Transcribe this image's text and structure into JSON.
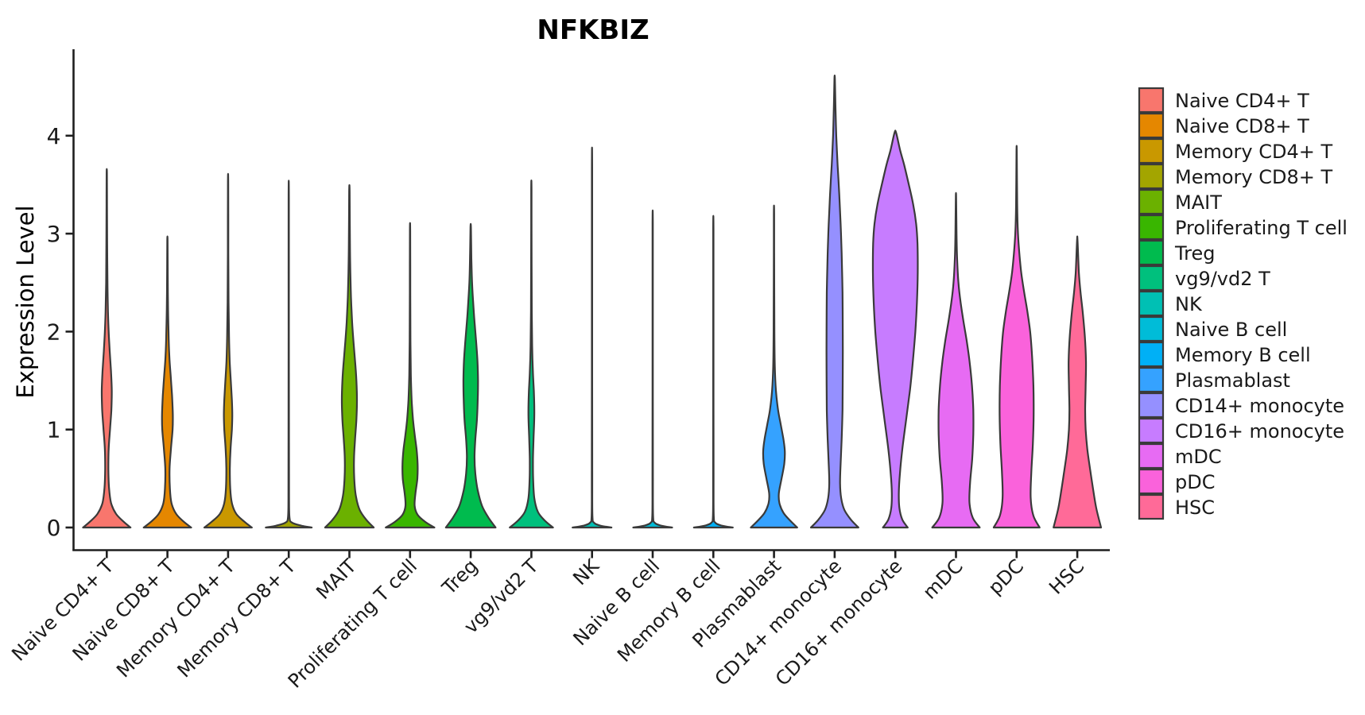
{
  "title": "NFKBIZ",
  "ylabel": "Expression Level",
  "chart_data": {
    "type": "violin",
    "title": "NFKBIZ",
    "xlabel": "",
    "ylabel": "Expression Level",
    "yticks": [
      0,
      1,
      2,
      3,
      4
    ],
    "ylim": [
      0,
      4.88
    ],
    "grid": false,
    "legend_position": "right",
    "stroke_color": "#3A3A3A",
    "axis_color": "#1f1f1f",
    "categories": [
      {
        "label": "Naive CD4+ T",
        "color": "#F8766D",
        "max_expression": 3.62,
        "profile": [
          [
            0,
            0.88
          ],
          [
            0.06,
            0.62
          ],
          [
            0.14,
            0.34
          ],
          [
            0.25,
            0.16
          ],
          [
            0.4,
            0.085
          ],
          [
            0.6,
            0.06
          ],
          [
            0.8,
            0.07
          ],
          [
            1.0,
            0.12
          ],
          [
            1.2,
            0.17
          ],
          [
            1.4,
            0.185
          ],
          [
            1.6,
            0.155
          ],
          [
            1.8,
            0.11
          ],
          [
            2.0,
            0.07
          ],
          [
            2.2,
            0.045
          ],
          [
            2.5,
            0.025
          ],
          [
            2.9,
            0.015
          ],
          [
            3.3,
            0.01
          ],
          [
            3.62,
            0.006
          ]
        ]
      },
      {
        "label": "Naive CD8+ T",
        "color": "#E58700",
        "max_expression": 2.93,
        "profile": [
          [
            0,
            0.88
          ],
          [
            0.06,
            0.6
          ],
          [
            0.14,
            0.32
          ],
          [
            0.25,
            0.15
          ],
          [
            0.4,
            0.09
          ],
          [
            0.6,
            0.08
          ],
          [
            0.8,
            0.13
          ],
          [
            1.0,
            0.19
          ],
          [
            1.15,
            0.2
          ],
          [
            1.35,
            0.17
          ],
          [
            1.55,
            0.12
          ],
          [
            1.75,
            0.07
          ],
          [
            2.0,
            0.04
          ],
          [
            2.3,
            0.02
          ],
          [
            2.6,
            0.012
          ],
          [
            2.93,
            0.006
          ]
        ]
      },
      {
        "label": "Memory CD4+ T",
        "color": "#C99800",
        "max_expression": 3.52,
        "profile": [
          [
            0,
            0.88
          ],
          [
            0.06,
            0.6
          ],
          [
            0.14,
            0.3
          ],
          [
            0.25,
            0.14
          ],
          [
            0.4,
            0.08
          ],
          [
            0.6,
            0.065
          ],
          [
            0.8,
            0.09
          ],
          [
            1.0,
            0.14
          ],
          [
            1.15,
            0.155
          ],
          [
            1.3,
            0.14
          ],
          [
            1.5,
            0.1
          ],
          [
            1.7,
            0.06
          ],
          [
            1.95,
            0.035
          ],
          [
            2.3,
            0.018
          ],
          [
            2.8,
            0.01
          ],
          [
            3.52,
            0.006
          ]
        ]
      },
      {
        "label": "Memory CD8+ T",
        "color": "#A3A500",
        "max_expression": 3.37,
        "profile": [
          [
            0,
            0.85
          ],
          [
            0.02,
            0.45
          ],
          [
            0.05,
            0.12
          ],
          [
            0.1,
            0.03
          ],
          [
            0.3,
            0.012
          ],
          [
            1.0,
            0.008
          ],
          [
            2.0,
            0.007
          ],
          [
            3.37,
            0.006
          ]
        ]
      },
      {
        "label": "MAIT",
        "color": "#6BB100",
        "max_expression": 3.43,
        "profile": [
          [
            0,
            0.9
          ],
          [
            0.08,
            0.62
          ],
          [
            0.18,
            0.38
          ],
          [
            0.32,
            0.24
          ],
          [
            0.5,
            0.18
          ],
          [
            0.7,
            0.17
          ],
          [
            0.9,
            0.21
          ],
          [
            1.1,
            0.26
          ],
          [
            1.3,
            0.28
          ],
          [
            1.5,
            0.26
          ],
          [
            1.7,
            0.21
          ],
          [
            1.9,
            0.15
          ],
          [
            2.1,
            0.1
          ],
          [
            2.35,
            0.06
          ],
          [
            2.6,
            0.035
          ],
          [
            2.9,
            0.02
          ],
          [
            3.43,
            0.008
          ]
        ]
      },
      {
        "label": "Proliferating T cell",
        "color": "#39B600",
        "max_expression": 3.03,
        "profile": [
          [
            0,
            0.9
          ],
          [
            0.06,
            0.55
          ],
          [
            0.13,
            0.28
          ],
          [
            0.22,
            0.17
          ],
          [
            0.35,
            0.2
          ],
          [
            0.5,
            0.27
          ],
          [
            0.65,
            0.28
          ],
          [
            0.8,
            0.24
          ],
          [
            0.95,
            0.17
          ],
          [
            1.1,
            0.11
          ],
          [
            1.3,
            0.06
          ],
          [
            1.55,
            0.03
          ],
          [
            1.9,
            0.015
          ],
          [
            2.4,
            0.009
          ],
          [
            3.03,
            0.006
          ]
        ]
      },
      {
        "label": "Treg",
        "color": "#00BB4E",
        "max_expression": 3.06,
        "profile": [
          [
            0,
            0.92
          ],
          [
            0.1,
            0.66
          ],
          [
            0.22,
            0.42
          ],
          [
            0.38,
            0.26
          ],
          [
            0.55,
            0.17
          ],
          [
            0.72,
            0.14
          ],
          [
            0.9,
            0.17
          ],
          [
            1.1,
            0.23
          ],
          [
            1.3,
            0.26
          ],
          [
            1.5,
            0.27
          ],
          [
            1.7,
            0.25
          ],
          [
            1.9,
            0.2
          ],
          [
            2.1,
            0.14
          ],
          [
            2.3,
            0.09
          ],
          [
            2.5,
            0.05
          ],
          [
            2.75,
            0.025
          ],
          [
            3.06,
            0.008
          ]
        ]
      },
      {
        "label": "vg9/vd2 T",
        "color": "#00C07D",
        "max_expression": 3.45,
        "profile": [
          [
            0,
            0.8
          ],
          [
            0.07,
            0.5
          ],
          [
            0.16,
            0.24
          ],
          [
            0.3,
            0.11
          ],
          [
            0.5,
            0.065
          ],
          [
            0.7,
            0.06
          ],
          [
            0.9,
            0.08
          ],
          [
            1.05,
            0.1
          ],
          [
            1.2,
            0.11
          ],
          [
            1.4,
            0.09
          ],
          [
            1.6,
            0.055
          ],
          [
            1.85,
            0.03
          ],
          [
            2.2,
            0.015
          ],
          [
            2.7,
            0.008
          ],
          [
            3.45,
            0.005
          ]
        ]
      },
      {
        "label": "NK",
        "color": "#00C0B4",
        "max_expression": 3.67,
        "profile": [
          [
            0,
            0.72
          ],
          [
            0.02,
            0.3
          ],
          [
            0.05,
            0.07
          ],
          [
            0.12,
            0.015
          ],
          [
            0.5,
            0.008
          ],
          [
            2.0,
            0.006
          ],
          [
            3.67,
            0.005
          ]
        ]
      },
      {
        "label": "Naive B cell",
        "color": "#00BCD8",
        "max_expression": 3.1,
        "profile": [
          [
            0,
            0.72
          ],
          [
            0.02,
            0.3
          ],
          [
            0.05,
            0.07
          ],
          [
            0.12,
            0.015
          ],
          [
            0.5,
            0.008
          ],
          [
            2.0,
            0.006
          ],
          [
            3.1,
            0.005
          ]
        ]
      },
      {
        "label": "Memory B cell",
        "color": "#00B0F6",
        "max_expression": 3.05,
        "profile": [
          [
            0,
            0.72
          ],
          [
            0.02,
            0.3
          ],
          [
            0.05,
            0.07
          ],
          [
            0.12,
            0.015
          ],
          [
            0.5,
            0.008
          ],
          [
            2.0,
            0.006
          ],
          [
            3.05,
            0.005
          ]
        ]
      },
      {
        "label": "Plasmablast",
        "color": "#35A2FF",
        "max_expression": 3.2,
        "profile": [
          [
            0,
            0.86
          ],
          [
            0.07,
            0.6
          ],
          [
            0.15,
            0.35
          ],
          [
            0.25,
            0.2
          ],
          [
            0.35,
            0.18
          ],
          [
            0.5,
            0.28
          ],
          [
            0.65,
            0.38
          ],
          [
            0.78,
            0.4
          ],
          [
            0.9,
            0.35
          ],
          [
            1.05,
            0.25
          ],
          [
            1.2,
            0.15
          ],
          [
            1.4,
            0.07
          ],
          [
            1.65,
            0.03
          ],
          [
            2.0,
            0.015
          ],
          [
            2.5,
            0.008
          ],
          [
            3.2,
            0.005
          ]
        ]
      },
      {
        "label": "CD14+ monocyte",
        "color": "#9590FF",
        "max_expression": 4.58,
        "profile": [
          [
            0,
            0.88
          ],
          [
            0.08,
            0.6
          ],
          [
            0.18,
            0.36
          ],
          [
            0.3,
            0.24
          ],
          [
            0.45,
            0.2
          ],
          [
            0.65,
            0.22
          ],
          [
            0.9,
            0.26
          ],
          [
            1.2,
            0.29
          ],
          [
            1.6,
            0.3
          ],
          [
            2.0,
            0.3
          ],
          [
            2.4,
            0.29
          ],
          [
            2.8,
            0.26
          ],
          [
            3.1,
            0.22
          ],
          [
            3.4,
            0.17
          ],
          [
            3.7,
            0.11
          ],
          [
            4.0,
            0.06
          ],
          [
            4.3,
            0.03
          ],
          [
            4.58,
            0.008
          ]
        ]
      },
      {
        "label": "CD16+ monocyte",
        "color": "#C77CFF",
        "max_expression": 4.03,
        "profile": [
          [
            0,
            0.46
          ],
          [
            0.08,
            0.26
          ],
          [
            0.2,
            0.15
          ],
          [
            0.35,
            0.13
          ],
          [
            0.55,
            0.17
          ],
          [
            0.8,
            0.26
          ],
          [
            1.1,
            0.4
          ],
          [
            1.4,
            0.54
          ],
          [
            1.7,
            0.65
          ],
          [
            2.0,
            0.74
          ],
          [
            2.3,
            0.8
          ],
          [
            2.6,
            0.83
          ],
          [
            2.9,
            0.82
          ],
          [
            3.1,
            0.77
          ],
          [
            3.3,
            0.66
          ],
          [
            3.5,
            0.5
          ],
          [
            3.7,
            0.33
          ],
          [
            3.85,
            0.18
          ],
          [
            4.03,
            0.03
          ]
        ]
      },
      {
        "label": "mDC",
        "color": "#E76BF3",
        "max_expression": 3.37,
        "profile": [
          [
            0,
            0.88
          ],
          [
            0.1,
            0.62
          ],
          [
            0.25,
            0.5
          ],
          [
            0.45,
            0.52
          ],
          [
            0.7,
            0.6
          ],
          [
            0.95,
            0.64
          ],
          [
            1.2,
            0.64
          ],
          [
            1.45,
            0.59
          ],
          [
            1.7,
            0.5
          ],
          [
            1.9,
            0.4
          ],
          [
            2.1,
            0.28
          ],
          [
            2.3,
            0.17
          ],
          [
            2.5,
            0.09
          ],
          [
            2.75,
            0.04
          ],
          [
            3.0,
            0.02
          ],
          [
            3.37,
            0.007
          ]
        ]
      },
      {
        "label": "pDC",
        "color": "#FA62DB",
        "max_expression": 3.83,
        "profile": [
          [
            0,
            0.85
          ],
          [
            0.12,
            0.62
          ],
          [
            0.3,
            0.52
          ],
          [
            0.55,
            0.54
          ],
          [
            0.85,
            0.6
          ],
          [
            1.15,
            0.63
          ],
          [
            1.45,
            0.62
          ],
          [
            1.75,
            0.57
          ],
          [
            2.0,
            0.5
          ],
          [
            2.2,
            0.4
          ],
          [
            2.4,
            0.28
          ],
          [
            2.6,
            0.17
          ],
          [
            2.8,
            0.1
          ],
          [
            3.0,
            0.05
          ],
          [
            3.3,
            0.02
          ],
          [
            3.83,
            0.006
          ]
        ]
      },
      {
        "label": "HSC",
        "color": "#FF6A98",
        "max_expression": 2.93,
        "profile": [
          [
            0,
            0.88
          ],
          [
            0.2,
            0.7
          ],
          [
            0.4,
            0.58
          ],
          [
            0.6,
            0.47
          ],
          [
            0.8,
            0.37
          ],
          [
            1.0,
            0.31
          ],
          [
            1.2,
            0.29
          ],
          [
            1.45,
            0.31
          ],
          [
            1.7,
            0.32
          ],
          [
            1.95,
            0.28
          ],
          [
            2.2,
            0.2
          ],
          [
            2.4,
            0.12
          ],
          [
            2.6,
            0.06
          ],
          [
            2.93,
            0.01
          ]
        ]
      }
    ]
  }
}
